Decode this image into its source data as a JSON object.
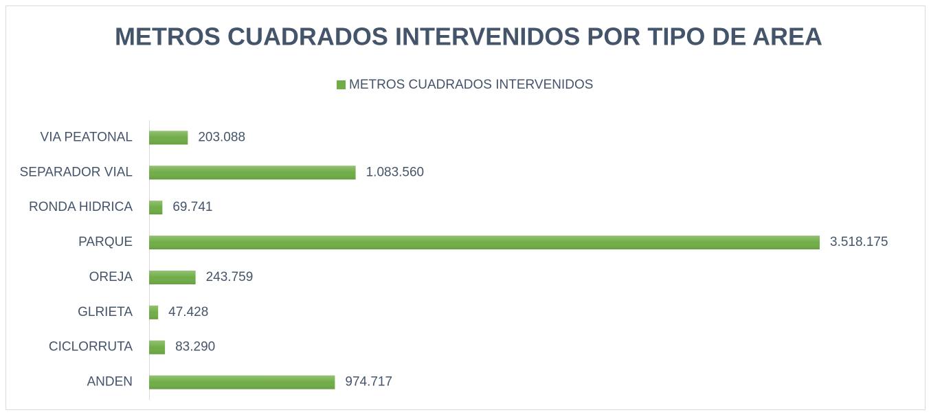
{
  "chart_data": {
    "type": "bar",
    "orientation": "horizontal",
    "title": "METROS CUADRADOS INTERVENIDOS POR TIPO DE AREA",
    "categories": [
      "VIA PEATONAL",
      "SEPARADOR VIAL",
      "RONDA HIDRICA",
      "PARQUE",
      "OREJA",
      "GLRIETA",
      "CICLORRUTA",
      "ANDEN"
    ],
    "series": [
      {
        "name": "METROS CUADRADOS INTERVENIDOS",
        "color": "#70ad47",
        "values": [
          203088,
          1083560,
          69741,
          3518175,
          243759,
          47428,
          83290,
          974717
        ],
        "value_labels": [
          "203.088",
          "1.083.560",
          "69.741",
          "3.518.175",
          "243.759",
          "47.428",
          "83.290",
          "974.717"
        ]
      }
    ],
    "legend": "top"
  }
}
